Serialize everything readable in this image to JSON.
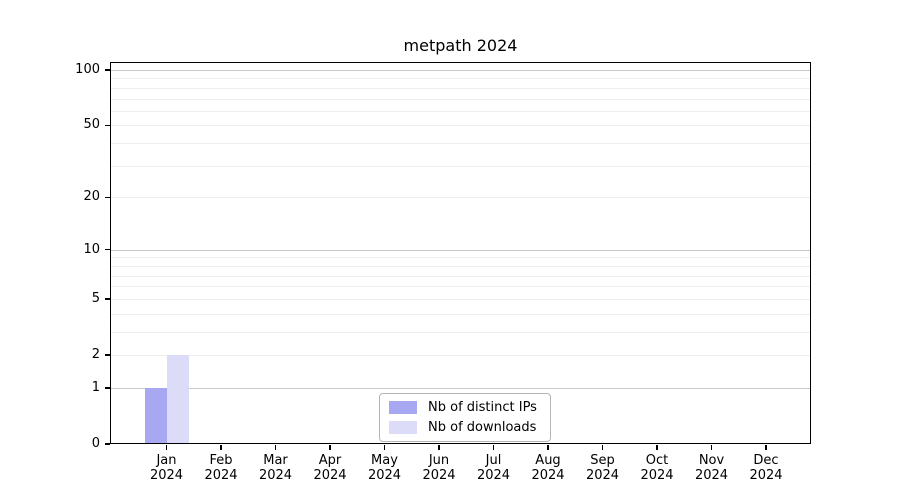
{
  "chart_data": {
    "type": "bar",
    "title": "metpath 2024",
    "xlabel": "",
    "ylabel": "",
    "categories": [
      "Jan",
      "Feb",
      "Mar",
      "Apr",
      "May",
      "Jun",
      "Jul",
      "Aug",
      "Sep",
      "Oct",
      "Nov",
      "Dec"
    ],
    "category_year": "2024",
    "series": [
      {
        "name": "Nb of distinct IPs",
        "color": "#a8a8f2",
        "values": [
          1,
          0,
          0,
          0,
          0,
          0,
          0,
          0,
          0,
          0,
          0,
          0
        ]
      },
      {
        "name": "Nb of downloads",
        "color": "#dcdcf8",
        "values": [
          2,
          0,
          0,
          0,
          0,
          0,
          0,
          0,
          0,
          0,
          0,
          0
        ]
      }
    ],
    "y_scale": "log1p",
    "ylim": [
      0,
      110
    ],
    "y_ticks": [
      0,
      1,
      2,
      5,
      10,
      20,
      50,
      100
    ],
    "gridlines": {
      "major_values": [
        1,
        10,
        100
      ],
      "minor_values": [
        2,
        3,
        4,
        5,
        6,
        7,
        8,
        9,
        20,
        30,
        40,
        50,
        60,
        70,
        80,
        90
      ],
      "major_color": "#c9c9c9",
      "minor_color": "#eeeeee"
    },
    "legend": {
      "position": "lower center",
      "border_color": "#b5b5b5",
      "entries": [
        "Nb of distinct IPs",
        "Nb of downloads"
      ]
    },
    "axis_color": "#000000",
    "background_color": "#ffffff"
  }
}
